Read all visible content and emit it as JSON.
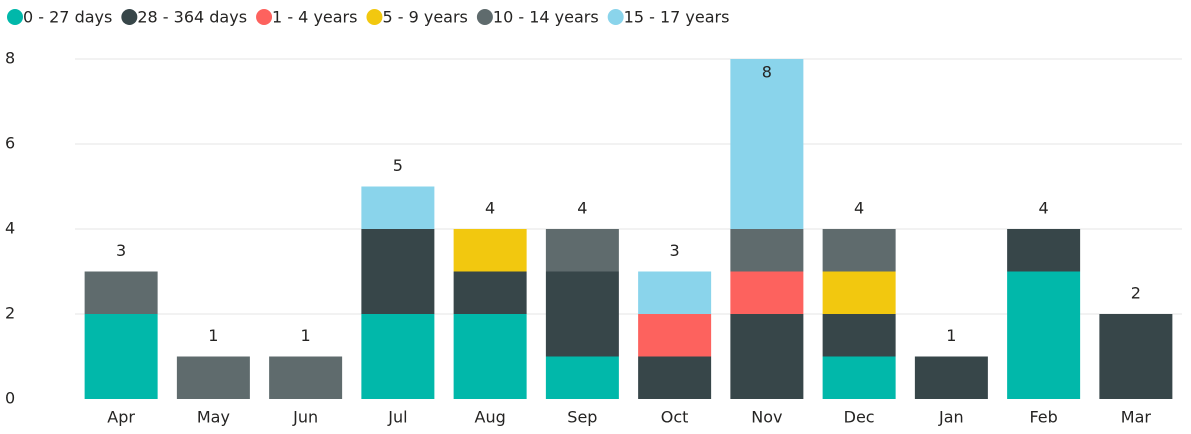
{
  "chart_data": {
    "type": "stacked_bar",
    "categories": [
      "Apr",
      "May",
      "Jun",
      "Jul",
      "Aug",
      "Sep",
      "Oct",
      "Nov",
      "Dec",
      "Jan",
      "Feb",
      "Mar"
    ],
    "series": [
      {
        "name": "0 - 27 days",
        "color": "#01B8AA",
        "values": [
          2,
          0,
          0,
          2,
          2,
          1,
          0,
          0,
          1,
          0,
          3,
          0
        ]
      },
      {
        "name": "28 - 364 days",
        "color": "#374649",
        "values": [
          0,
          0,
          0,
          2,
          1,
          2,
          1,
          2,
          1,
          1,
          1,
          2
        ]
      },
      {
        "name": "1 - 4 years",
        "color": "#FD625E",
        "values": [
          0,
          0,
          0,
          0,
          0,
          0,
          1,
          1,
          0,
          0,
          0,
          0
        ]
      },
      {
        "name": "5 - 9 years",
        "color": "#F2C80F",
        "values": [
          0,
          0,
          0,
          0,
          1,
          0,
          0,
          0,
          1,
          0,
          0,
          0
        ]
      },
      {
        "name": "10 - 14 years",
        "color": "#5F6B6D",
        "values": [
          1,
          1,
          1,
          0,
          0,
          1,
          0,
          1,
          1,
          0,
          0,
          0
        ]
      },
      {
        "name": "15 - 17 years",
        "color": "#8AD4EB",
        "values": [
          0,
          0,
          0,
          1,
          0,
          0,
          1,
          4,
          0,
          0,
          0,
          0
        ]
      }
    ],
    "totals": [
      3,
      1,
      1,
      5,
      4,
      4,
      3,
      8,
      4,
      1,
      4,
      2
    ],
    "ylim": [
      0,
      8
    ],
    "yticks": [
      0,
      2,
      4,
      6,
      8
    ],
    "grid": true,
    "legend": "top-left"
  }
}
